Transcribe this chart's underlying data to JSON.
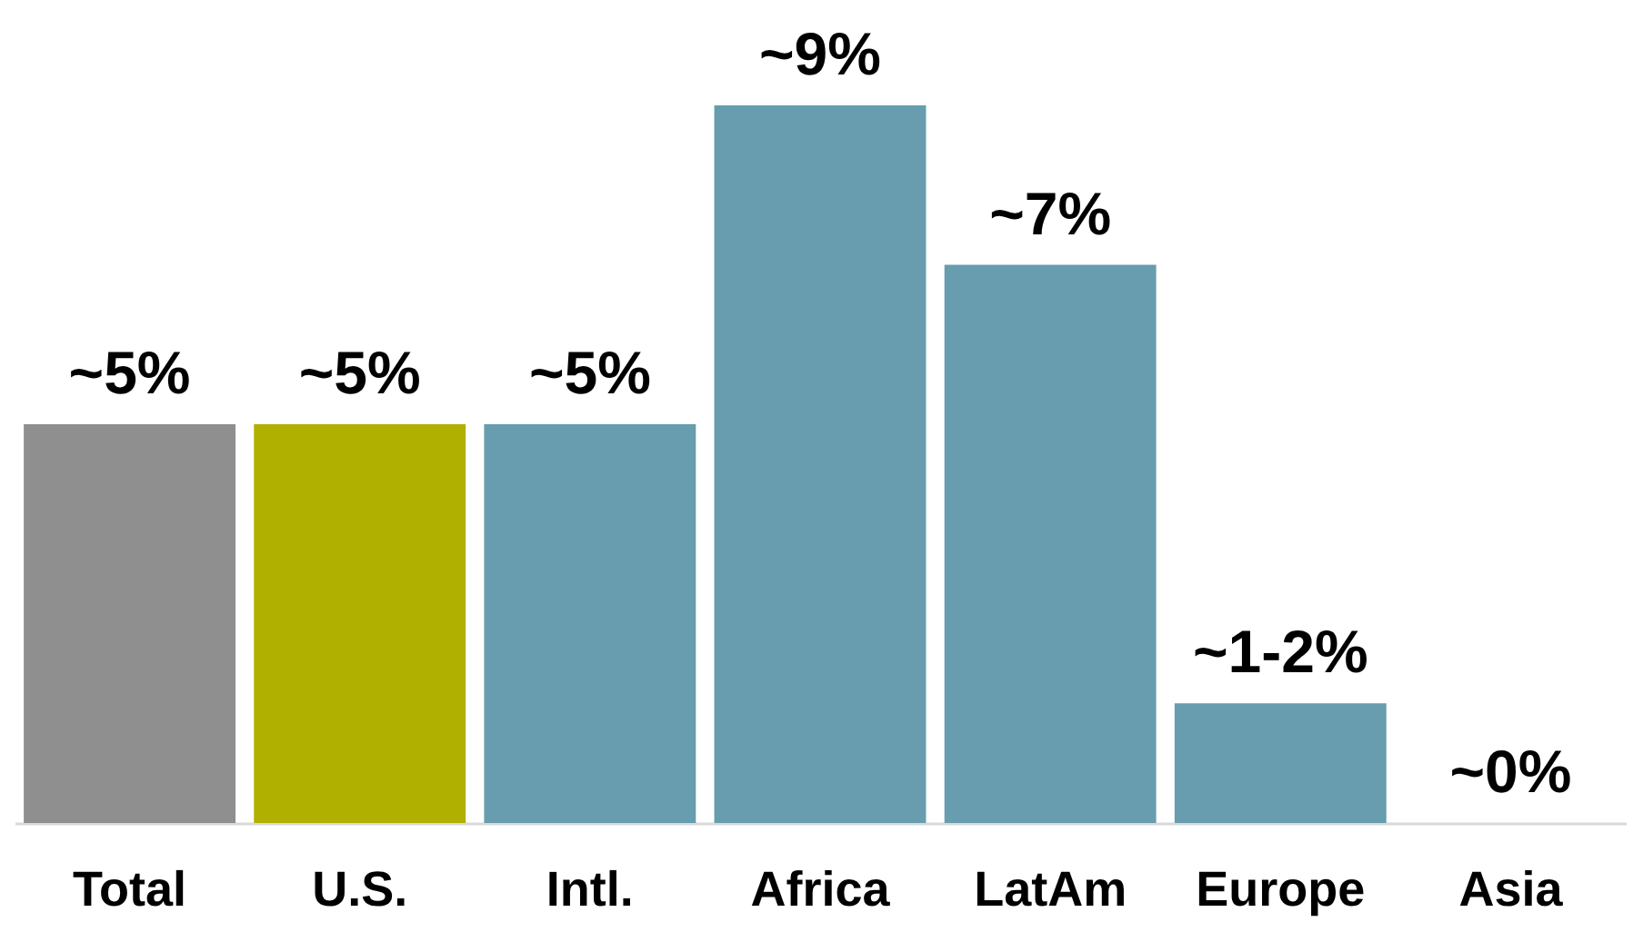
{
  "chart_data": {
    "type": "bar",
    "categories": [
      "Total",
      "U.S.",
      "Intl.",
      "Africa",
      "LatAm",
      "Europe",
      "Asia"
    ],
    "values": [
      5,
      5,
      5,
      9,
      7,
      1.5,
      0
    ],
    "colors": [
      "#8f8f90",
      "#b0b000",
      "#679dae",
      "#679dae",
      "#679dae",
      "#679dae",
      "#679dae"
    ],
    "value_labels": [
      "~5%",
      "~5%",
      "~5%",
      "~9%",
      "~7%",
      "~1-2%",
      "~0%"
    ],
    "grid": false
  }
}
